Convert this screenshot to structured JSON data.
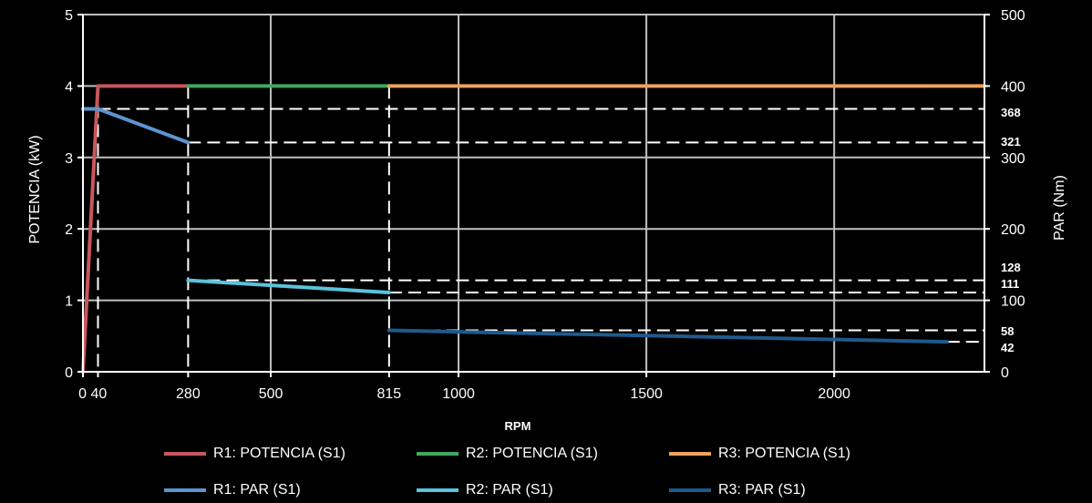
{
  "chart_data": {
    "type": "line",
    "xlabel": "RPM",
    "ylabel_left": "POTENCIA (kW)",
    "ylabel_right": "PAR (Nm)",
    "xlim": [
      0,
      2400
    ],
    "ylim_left": [
      0,
      5
    ],
    "ylim_right": [
      0,
      500
    ],
    "grid": true,
    "x_ticks": [
      {
        "value": 0,
        "label": "0"
      },
      {
        "value": 40,
        "label": "40"
      },
      {
        "value": 280,
        "label": "280"
      },
      {
        "value": 500,
        "label": "500"
      },
      {
        "value": 815,
        "label": "815"
      },
      {
        "value": 1000,
        "label": "1000"
      },
      {
        "value": 1500,
        "label": "1500"
      },
      {
        "value": 2000,
        "label": "2000"
      }
    ],
    "y_left_ticks": [
      0,
      1,
      2,
      3,
      4,
      5
    ],
    "y_right_ticks": [
      0,
      100,
      200,
      300,
      400,
      500
    ],
    "torque_annotations": [
      368,
      321,
      128,
      111,
      58,
      42
    ],
    "reference_rpm": [
      40,
      280,
      815
    ],
    "series": [
      {
        "name": "R1: POTENCIA (S1)",
        "axis": "left",
        "color": "#c8575c",
        "x": [
          0,
          40,
          280
        ],
        "y": [
          0,
          4,
          4
        ]
      },
      {
        "name": "R2: POTENCIA (S1)",
        "axis": "left",
        "color": "#3eaa5e",
        "x": [
          280,
          815
        ],
        "y": [
          4,
          4
        ]
      },
      {
        "name": "R3: POTENCIA (S1)",
        "axis": "left",
        "color": "#f0a25a",
        "x": [
          815,
          2400
        ],
        "y": [
          4,
          4
        ]
      },
      {
        "name": "R1: PAR (S1)",
        "axis": "right",
        "color": "#5b95cf",
        "x": [
          0,
          40,
          280
        ],
        "y": [
          368,
          368,
          321
        ]
      },
      {
        "name": "R2: PAR (S1)",
        "axis": "right",
        "color": "#5bc3dc",
        "x": [
          280,
          815
        ],
        "y": [
          128,
          111
        ]
      },
      {
        "name": "R3: PAR (S1)",
        "axis": "right",
        "color": "#1f5a8c",
        "x": [
          815,
          2300
        ],
        "y": [
          58,
          42
        ]
      }
    ]
  }
}
